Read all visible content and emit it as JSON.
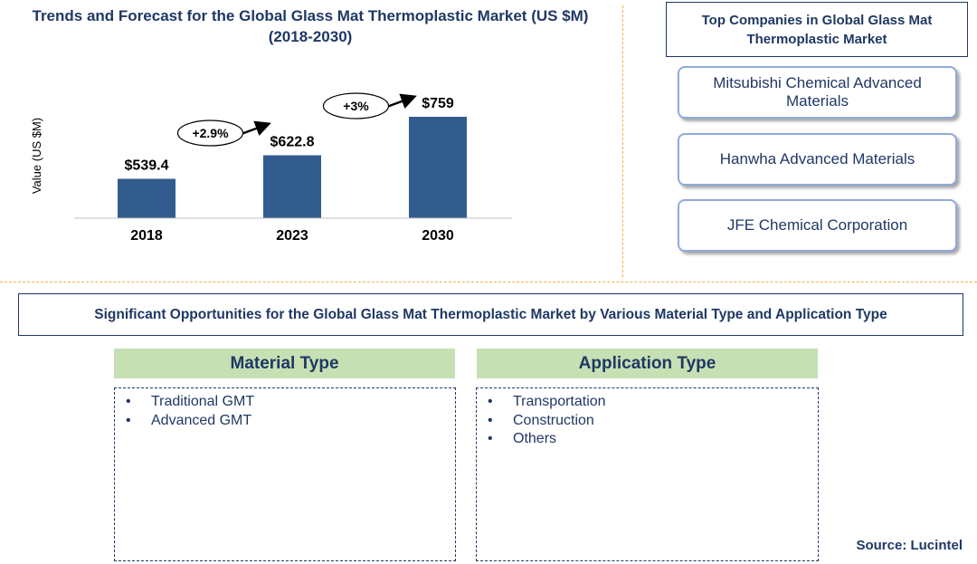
{
  "chart_data": {
    "type": "bar",
    "title": "Trends and Forecast for the Global Glass Mat Thermoplastic Market (US $M)",
    "subtitle": "(2018-2030)",
    "ylabel": "Value (US $M)",
    "xlabel": "",
    "categories": [
      "2018",
      "2023",
      "2030"
    ],
    "values": [
      539.4,
      622.8,
      759
    ],
    "value_labels": [
      "$539.4",
      "$622.8",
      "$759"
    ],
    "ylim": [
      400,
      800
    ],
    "bar_color": "#335c8e",
    "growth": [
      {
        "from": "2018",
        "to": "2023",
        "label": "+2.9%"
      },
      {
        "from": "2023",
        "to": "2030",
        "label": "+3%"
      }
    ],
    "grid": false,
    "legend": "none"
  },
  "companies": {
    "title": "Top Companies in Global Glass Mat Thermoplastic Market",
    "items": [
      "Mitsubishi Chemical Advanced Materials",
      "Hanwha Advanced Materials",
      "JFE Chemical Corporation"
    ]
  },
  "opportunities": {
    "title": "Significant Opportunities for the Global Glass Mat Thermoplastic Market by Various Material Type  and Application Type",
    "material": {
      "title": "Material Type",
      "items": [
        "Traditional GMT",
        "Advanced GMT"
      ]
    },
    "application": {
      "title": "Application Type",
      "items": [
        "Transportation",
        "Construction",
        "Others"
      ]
    }
  },
  "source": "Source: Lucintel",
  "colors": {
    "navy": "#1f3864",
    "divider": "#f0b24a",
    "category_fill": "#c6e0b4",
    "company_border": "#8faadc"
  }
}
